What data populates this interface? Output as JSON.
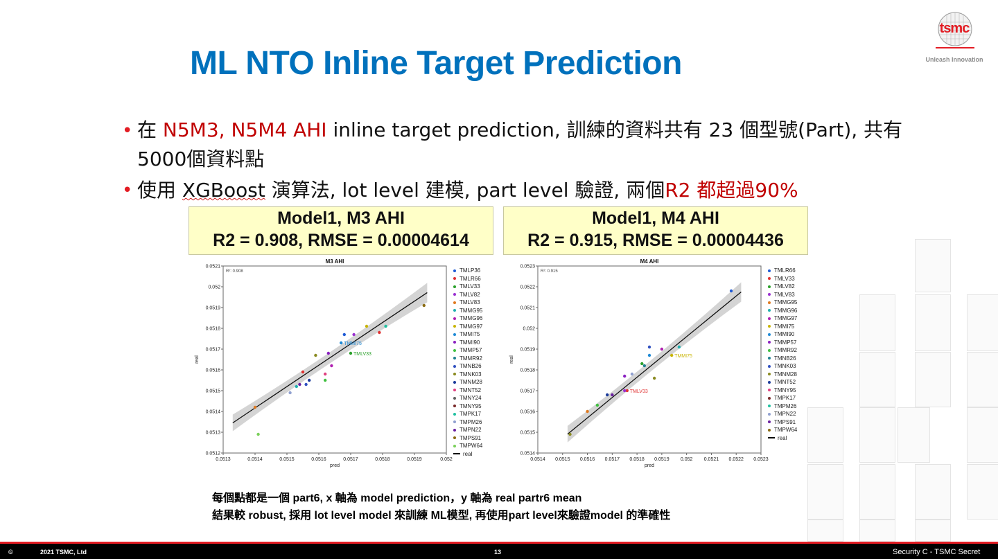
{
  "header": {
    "logo_text": "tsmc",
    "logo_tagline": "Unleash Innovation",
    "title": "ML NTO Inline Target Prediction"
  },
  "bullets": {
    "b1_pre": "在 ",
    "b1_red": "N5M3, N5M4 AHI",
    "b1_post": " inline target prediction, 訓練的資料共有 23 個型號(Part), 共有",
    "b1_line2": "5000個資料點",
    "b2_pre": "使用 ",
    "b2_ul": "XGBoost",
    "b2_mid": " 演算法, lot level 建模, part level 驗證, 兩個",
    "b2_red": "R2 都超過90%"
  },
  "notes": {
    "line1": "每個點都是一個 part6, x 軸為 model prediction，y 軸為 real partr6 mean",
    "line2": "結果較 robust, 採用 lot level model 來訓練 ML模型, 再使用part level來驗證model 的準確性"
  },
  "footer": {
    "copyright": "©",
    "company": "2021 TSMC, Ltd",
    "page": "13",
    "security": "Security C - TSMC Secret"
  },
  "panels": [
    {
      "title": "Model1, M3 AHI",
      "metrics": "R2 = 0.908, RMSE = 0.00004614"
    },
    {
      "title": "Model1, M4 AHI",
      "metrics": "R2 = 0.915, RMSE = 0.00004436"
    }
  ],
  "colors": {
    "title_blue": "#0071bc",
    "accent_red": "#c00000",
    "panel_yellow": "#ffffc8",
    "fit_band": "#cccccc"
  },
  "chart_data": [
    {
      "type": "scatter",
      "title": "M3 AHI",
      "xlabel": "pred",
      "ylabel": "real",
      "r2_label": "R²: 0.908",
      "xlim": [
        0.0513,
        0.052
      ],
      "ylim": [
        0.0512,
        0.0521
      ],
      "xticks": [
        "0.0513",
        "0.0514",
        "0.0515",
        "0.0516",
        "0.0517",
        "0.0518",
        "0.0519",
        "0.052"
      ],
      "yticks": [
        "0.0512",
        "0.0513",
        "0.0514",
        "0.0515",
        "0.0516",
        "0.0517",
        "0.0518",
        "0.0519",
        "0.052",
        "0.0521"
      ],
      "fit": {
        "x": [
          0.05133,
          0.05194
        ],
        "y": [
          0.051345,
          0.051972
        ]
      },
      "legend": [
        "TMLP36",
        "TMLR66",
        "TMLV33",
        "TMLV82",
        "TMLV83",
        "TMMG95",
        "TMMG96",
        "TMMG97",
        "TMMI75",
        "TMMI90",
        "TMMP57",
        "TMMR92",
        "TMNB26",
        "TMNK03",
        "TMNM28",
        "TMNT52",
        "TMNY24",
        "TMNY95",
        "TMPK17",
        "TMPM26",
        "TMPN22",
        "TMPS91",
        "TMPW64",
        "real"
      ],
      "legend_colors": [
        "#1f5bd6",
        "#e03030",
        "#2aa02a",
        "#9a30d0",
        "#e07a20",
        "#20b0b0",
        "#b020b0",
        "#c8b400",
        "#1f8ad6",
        "#8a20c0",
        "#40c040",
        "#208090",
        "#3050c0",
        "#8a8a20",
        "#1a3a9a",
        "#e04080",
        "#606060",
        "#7a2a2a",
        "#20c0a0",
        "#90a0d0",
        "#6a20a0",
        "#8a6a10",
        "#7ad05a"
      ],
      "points": [
        {
          "x": 0.05168,
          "y": 0.05177,
          "c": "#1f5bd6"
        },
        {
          "x": 0.05179,
          "y": 0.05178,
          "c": "#e03030"
        },
        {
          "x": 0.0517,
          "y": 0.05168,
          "c": "#2aa02a",
          "label": "TMLV33"
        },
        {
          "x": 0.05171,
          "y": 0.05177,
          "c": "#9a30d0"
        },
        {
          "x": 0.0514,
          "y": 0.05142,
          "c": "#e07a20"
        },
        {
          "x": 0.05153,
          "y": 0.05152,
          "c": "#20b0b0"
        },
        {
          "x": 0.05164,
          "y": 0.05162,
          "c": "#b020b0"
        },
        {
          "x": 0.05175,
          "y": 0.05181,
          "c": "#c8b400"
        },
        {
          "x": 0.05167,
          "y": 0.05173,
          "c": "#1f8ad6",
          "label": "TMMI75"
        },
        {
          "x": 0.05163,
          "y": 0.05168,
          "c": "#8a20c0"
        },
        {
          "x": 0.05141,
          "y": 0.05129,
          "c": "#7ad05a"
        },
        {
          "x": 0.05155,
          "y": 0.05159,
          "c": "#e03030"
        },
        {
          "x": 0.05156,
          "y": 0.05153,
          "c": "#3050c0"
        },
        {
          "x": 0.05159,
          "y": 0.05167,
          "c": "#8a8a20"
        },
        {
          "x": 0.05157,
          "y": 0.05155,
          "c": "#1a3a9a"
        },
        {
          "x": 0.05162,
          "y": 0.05158,
          "c": "#e04080"
        },
        {
          "x": 0.05162,
          "y": 0.05155,
          "c": "#40c040"
        },
        {
          "x": 0.05181,
          "y": 0.05181,
          "c": "#20c0a0"
        },
        {
          "x": 0.05151,
          "y": 0.05149,
          "c": "#90a0d0"
        },
        {
          "x": 0.05154,
          "y": 0.05153,
          "c": "#6a20a0"
        },
        {
          "x": 0.05193,
          "y": 0.05191,
          "c": "#8a6a10"
        }
      ]
    },
    {
      "type": "scatter",
      "title": "M4 AHI",
      "xlabel": "pred",
      "ylabel": "real",
      "r2_label": "R²: 0.915",
      "xlim": [
        0.0514,
        0.0523
      ],
      "ylim": [
        0.0514,
        0.0523
      ],
      "xticks": [
        "0.0514",
        "0.0515",
        "0.0516",
        "0.0517",
        "0.0518",
        "0.0519",
        "0.052",
        "0.0521",
        "0.0522",
        "0.0523"
      ],
      "yticks": [
        "0.0514",
        "0.0515",
        "0.0516",
        "0.0517",
        "0.0518",
        "0.0519",
        "0.052",
        "0.0521",
        "0.0522",
        "0.0523"
      ],
      "fit": {
        "x": [
          0.05152,
          0.05222
        ],
        "y": [
          0.051491,
          0.052175
        ]
      },
      "legend": [
        "TMLR66",
        "TMLV33",
        "TMLV82",
        "TMLV83",
        "TMMG95",
        "TMMG96",
        "TMMG97",
        "TMMI75",
        "TMMI90",
        "TMMP57",
        "TMMR92",
        "TMNB26",
        "TMNK03",
        "TMNM28",
        "TMNT52",
        "TMNY95",
        "TMPK17",
        "TMPM26",
        "TMPN22",
        "TMPS91",
        "TMPW64",
        "real"
      ],
      "legend_colors": [
        "#1f5bd6",
        "#e03030",
        "#2aa02a",
        "#9a30d0",
        "#e07a20",
        "#20b0b0",
        "#b020b0",
        "#c8b400",
        "#1f8ad6",
        "#8a20c0",
        "#40c040",
        "#208090",
        "#3050c0",
        "#8a8a20",
        "#1a3a9a",
        "#e04080",
        "#7a2a2a",
        "#20c0a0",
        "#90a0d0",
        "#6a20a0",
        "#8a6a10"
      ],
      "points": [
        {
          "x": 0.05218,
          "y": 0.05218,
          "c": "#1f5bd6"
        },
        {
          "x": 0.05176,
          "y": 0.0517,
          "c": "#e03030",
          "label": "TMLV33"
        },
        {
          "x": 0.05182,
          "y": 0.05183,
          "c": "#2aa02a"
        },
        {
          "x": 0.05175,
          "y": 0.0517,
          "c": "#9a30d0"
        },
        {
          "x": 0.0516,
          "y": 0.0516,
          "c": "#e07a20"
        },
        {
          "x": 0.05197,
          "y": 0.05191,
          "c": "#20b0b0"
        },
        {
          "x": 0.0519,
          "y": 0.0519,
          "c": "#b020b0"
        },
        {
          "x": 0.05194,
          "y": 0.05187,
          "c": "#c8b400",
          "label": "TMMI75"
        },
        {
          "x": 0.05185,
          "y": 0.05187,
          "c": "#1f8ad6"
        },
        {
          "x": 0.05175,
          "y": 0.05177,
          "c": "#8a20c0"
        },
        {
          "x": 0.05164,
          "y": 0.05163,
          "c": "#40c040"
        },
        {
          "x": 0.05183,
          "y": 0.05182,
          "c": "#208090"
        },
        {
          "x": 0.05185,
          "y": 0.05191,
          "c": "#3050c0"
        },
        {
          "x": 0.05153,
          "y": 0.05149,
          "c": "#8a8a20"
        },
        {
          "x": 0.05187,
          "y": 0.05176,
          "c": "#8a8a20"
        },
        {
          "x": 0.05168,
          "y": 0.05168,
          "c": "#1a3a9a"
        },
        {
          "x": 0.05178,
          "y": 0.05178,
          "c": "#90a0d0"
        },
        {
          "x": 0.0517,
          "y": 0.05168,
          "c": "#6a20a0"
        }
      ]
    }
  ]
}
